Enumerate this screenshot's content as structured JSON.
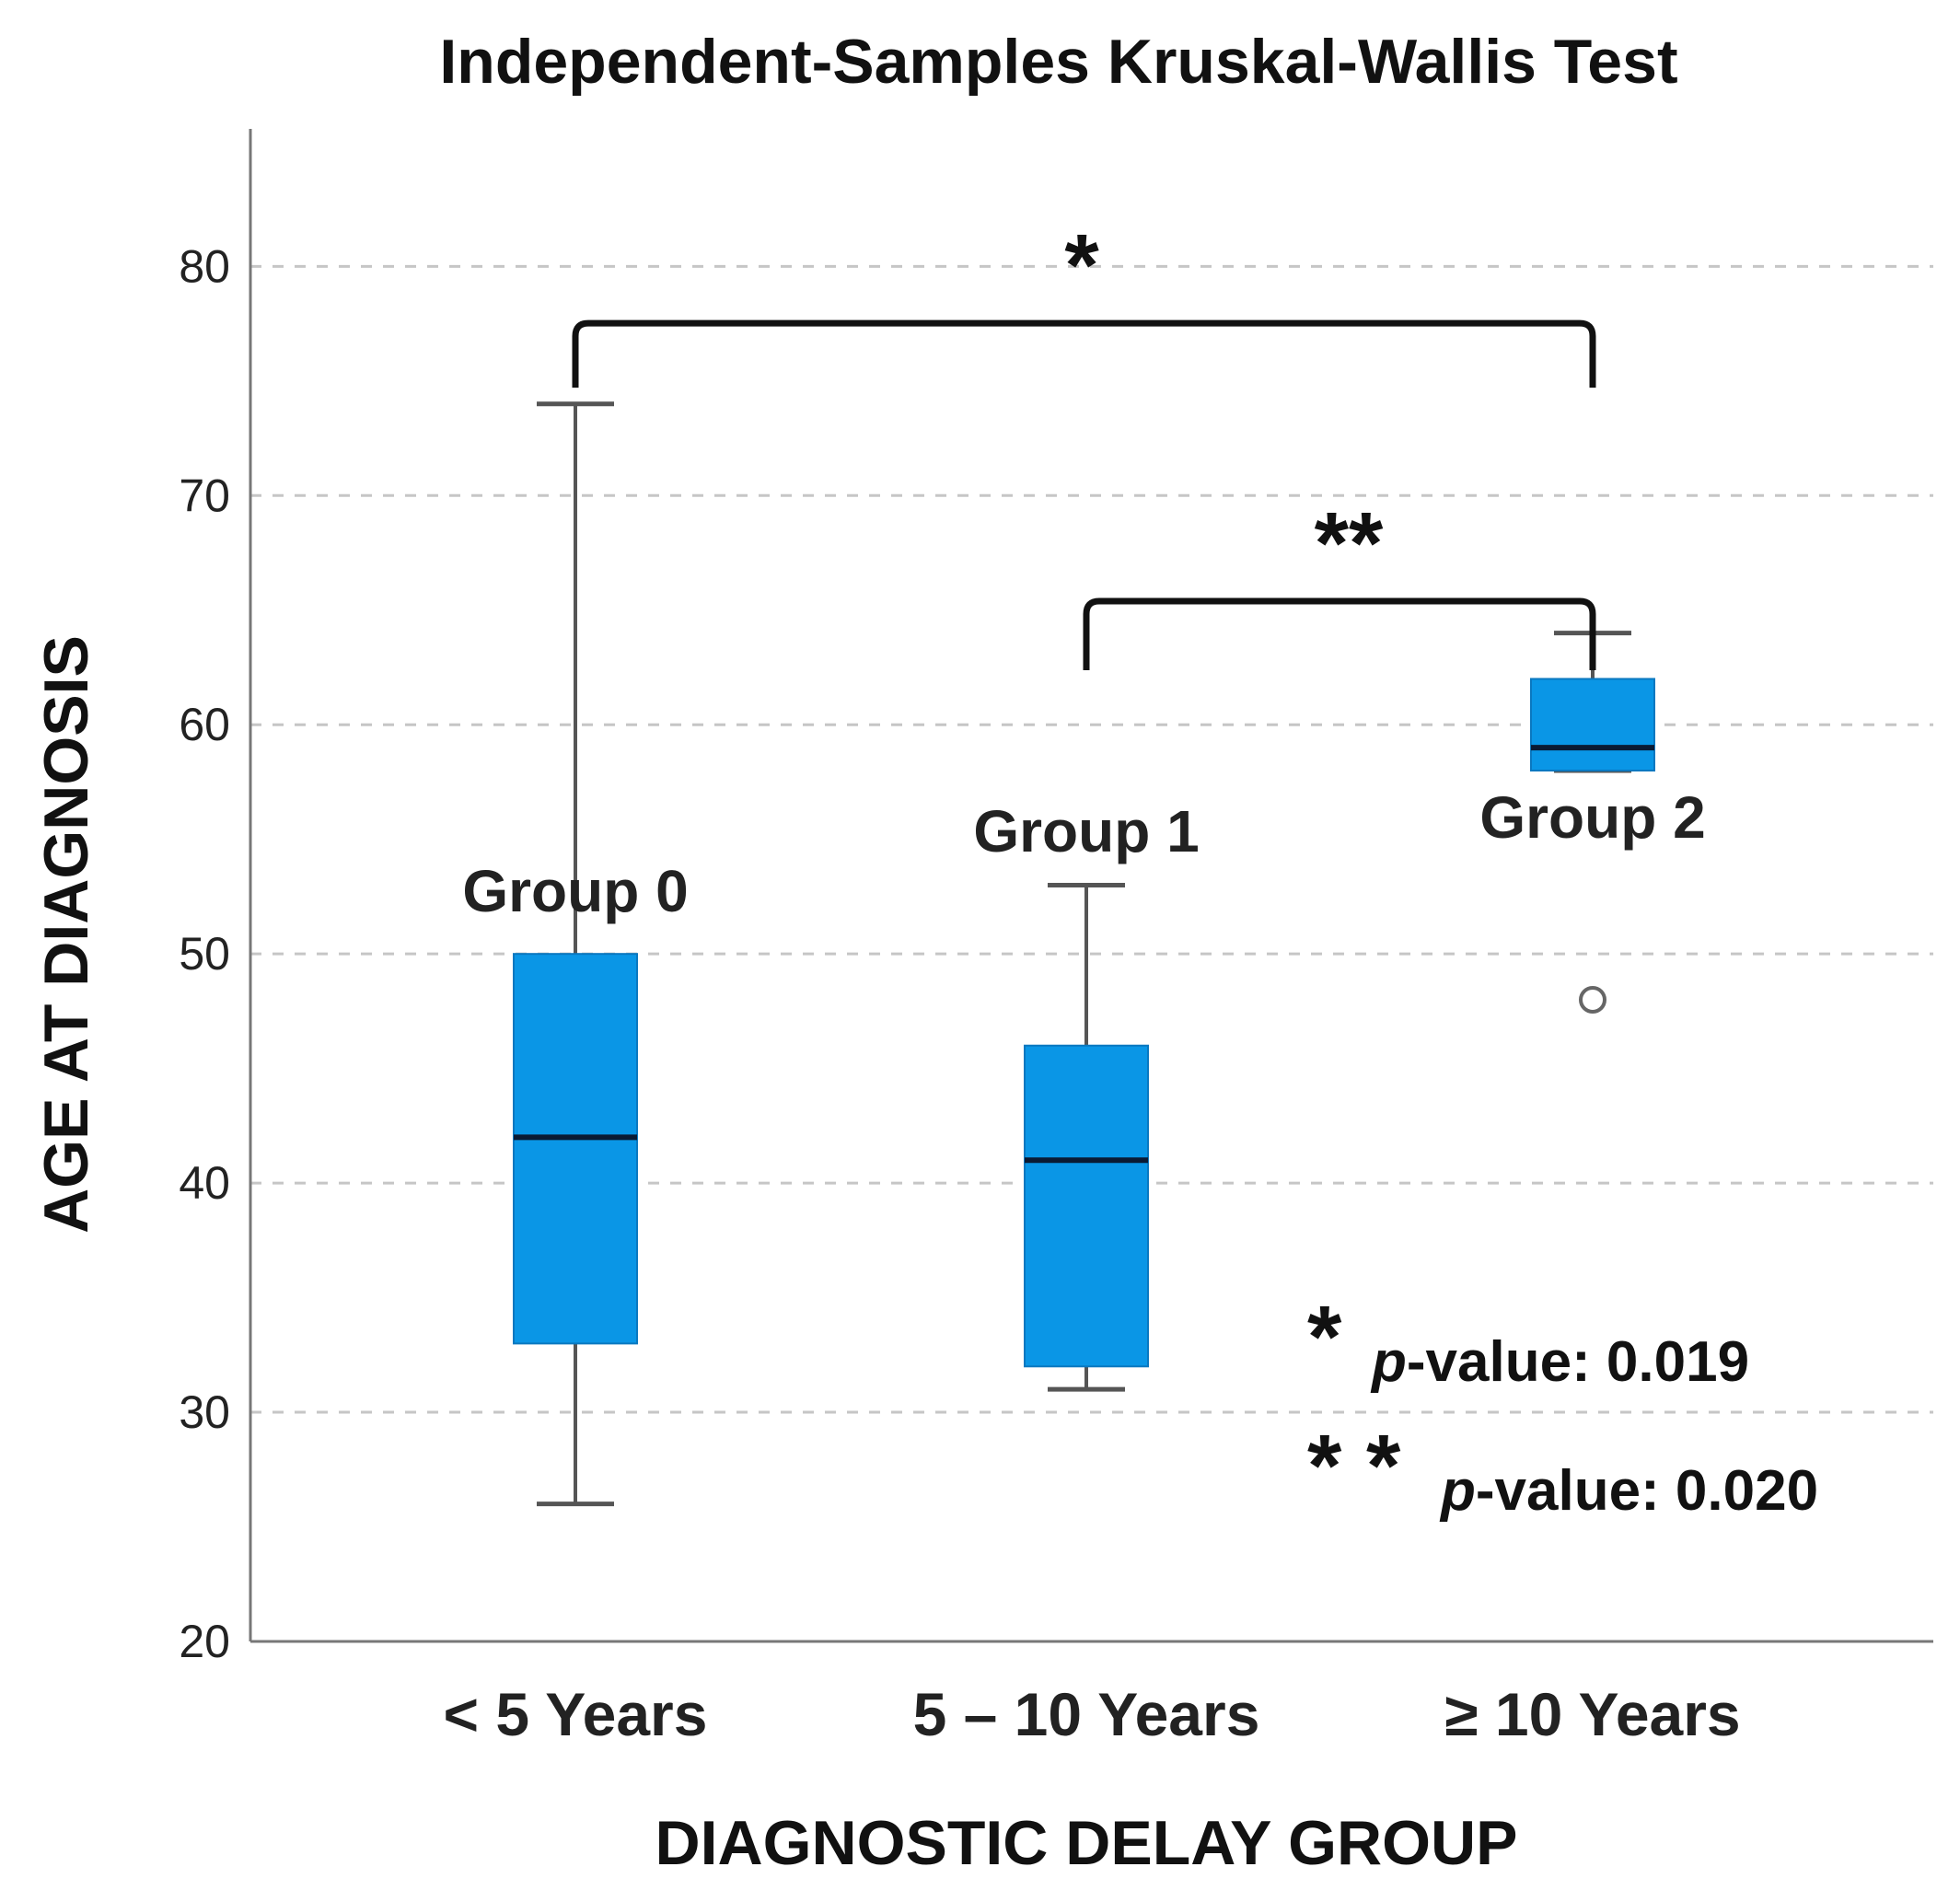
{
  "chart_data": {
    "type": "box",
    "title": "Independent-Samples Kruskal-Wallis Test",
    "xlabel": "DIAGNOSTIC DELAY GROUP",
    "ylabel": "AGE AT DIAGNOSIS",
    "ylim": [
      20,
      86
    ],
    "yticks": [
      20,
      30,
      40,
      50,
      60,
      70,
      80
    ],
    "grid": true,
    "categories": [
      "< 5 Years",
      "5 – 10 Years",
      "≥ 10 Years"
    ],
    "boxes": [
      {
        "category": "< 5 Years",
        "label": "Group 0",
        "min": 26,
        "q1": 33,
        "median": 42,
        "q3": 50,
        "max": 74,
        "outliers": []
      },
      {
        "category": "5 – 10 Years",
        "label": "Group 1",
        "min": 31,
        "q1": 32,
        "median": 41,
        "q3": 46,
        "max": 53,
        "outliers": []
      },
      {
        "category": "≥ 10 Years",
        "label": "Group 2",
        "min": 58,
        "q1": 58,
        "median": 59,
        "q3": 62,
        "max": 64,
        "outliers": [
          48
        ]
      }
    ],
    "significance": [
      {
        "from": 0,
        "to": 2,
        "level": 78,
        "stars": "*"
      },
      {
        "from": 1,
        "to": 2,
        "level": 67,
        "stars": "**"
      }
    ],
    "legend": [
      {
        "stars": "*",
        "p_label": "p",
        "text": "-value: 0.019"
      },
      {
        "stars": "* *",
        "p_label": "p",
        "text": "-value: 0.020"
      }
    ],
    "colors": {
      "box_fill": "#0a96e6",
      "box_stroke": "#0a78c0",
      "median": "#0a1a33",
      "whisker": "#555555",
      "grid": "#c6c6c6",
      "axis": "#777777"
    }
  }
}
